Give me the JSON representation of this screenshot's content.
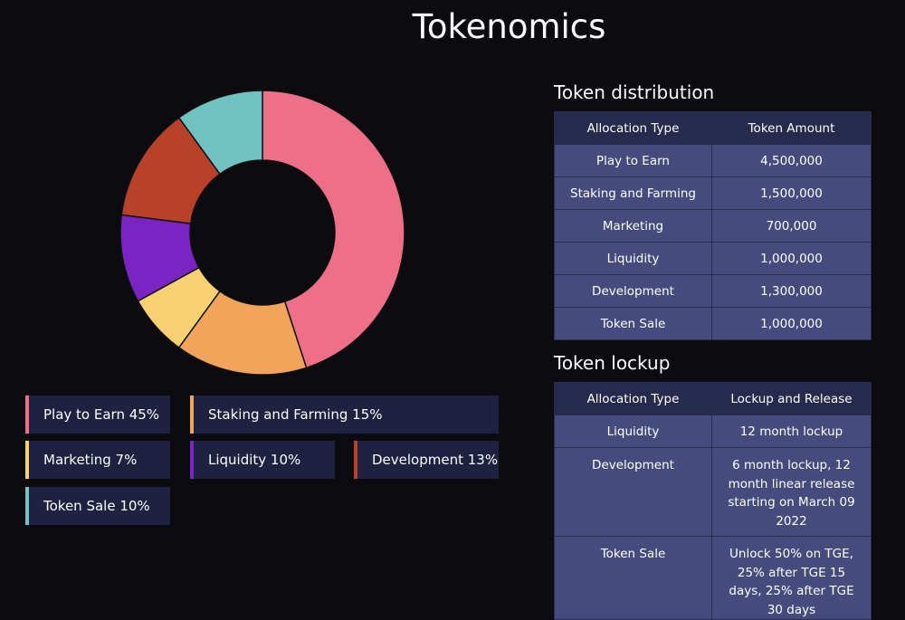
{
  "page": {
    "title": "Tokenomics"
  },
  "colors": {
    "play_to_earn": "#ee7088",
    "staking_and_farming": "#f2a55a",
    "marketing": "#f9d171",
    "liquidity": "#7b24c4",
    "development": "#b8412a",
    "token_sale": "#6fc3c3"
  },
  "chart_data": {
    "type": "pie",
    "donut": true,
    "categories": [
      "Play to Earn",
      "Staking and Farming",
      "Marketing",
      "Liquidity",
      "Development",
      "Token Sale"
    ],
    "values": [
      45,
      15,
      7,
      10,
      13,
      10
    ],
    "colors": [
      "#ee7088",
      "#f2a55a",
      "#f9d171",
      "#7b24c4",
      "#b8412a",
      "#6fc3c3"
    ],
    "legend": [
      "Play to Earn 45%",
      "Staking and Farming 15%",
      "Marketing 7%",
      "Liquidity 10%",
      "Development 13%",
      "Token Sale 10%"
    ],
    "legend_placement": "bottom"
  },
  "distribution": {
    "title": "Token distribution",
    "headers": [
      "Allocation Type",
      "Token Amount"
    ],
    "rows": [
      [
        "Play to Earn",
        "4,500,000"
      ],
      [
        "Staking and Farming",
        "1,500,000"
      ],
      [
        "Marketing",
        "700,000"
      ],
      [
        "Liquidity",
        "1,000,000"
      ],
      [
        "Development",
        "1,300,000"
      ],
      [
        "Token Sale",
        "1,000,000"
      ]
    ]
  },
  "lockup": {
    "title": "Token lockup",
    "headers": [
      "Allocation Type",
      "Lockup and Release"
    ],
    "rows": [
      [
        "Liquidity",
        "12 month lockup"
      ],
      [
        "Development",
        "6 month lockup, 12 month linear release starting on March 09 2022"
      ],
      [
        "Token Sale",
        "Unlock 50% on TGE, 25% after TGE 15 days, 25% after TGE 30 days"
      ]
    ]
  }
}
